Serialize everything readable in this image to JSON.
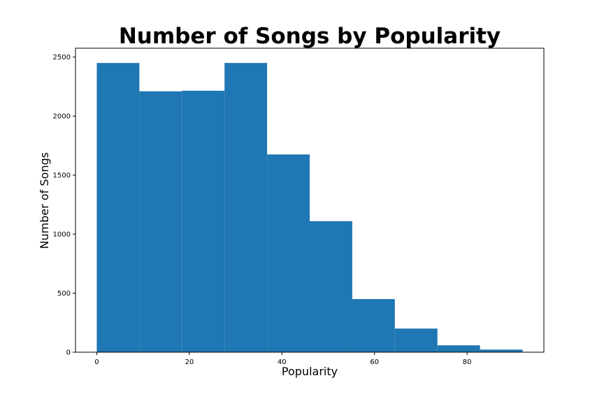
{
  "chart_data": {
    "type": "bar",
    "title": "Number of Songs by Popularity",
    "xlabel": "Popularity",
    "ylabel": "Number of Songs",
    "bin_edges": [
      0,
      9.2,
      18.4,
      27.6,
      36.8,
      46,
      55.2,
      64.4,
      73.6,
      82.8,
      92
    ],
    "values": [
      2450,
      2210,
      2215,
      2450,
      1675,
      1110,
      450,
      200,
      58,
      22
    ],
    "xlim": [
      -4.6,
      96.6
    ],
    "ylim": [
      0,
      2575
    ],
    "x_ticks": [
      0,
      20,
      40,
      60,
      80
    ],
    "y_ticks": [
      0,
      500,
      1000,
      1500,
      2000,
      2500
    ],
    "grid": false,
    "bar_color": "#1f77b4"
  }
}
